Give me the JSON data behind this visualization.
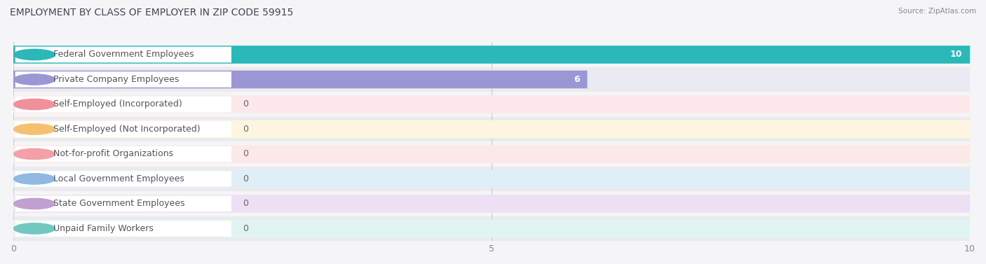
{
  "title": "EMPLOYMENT BY CLASS OF EMPLOYER IN ZIP CODE 59915",
  "source": "Source: ZipAtlas.com",
  "categories": [
    "Federal Government Employees",
    "Private Company Employees",
    "Self-Employed (Incorporated)",
    "Self-Employed (Not Incorporated)",
    "Not-for-profit Organizations",
    "Local Government Employees",
    "State Government Employees",
    "Unpaid Family Workers"
  ],
  "values": [
    10,
    6,
    0,
    0,
    0,
    0,
    0,
    0
  ],
  "bar_colors": [
    "#2ab8b8",
    "#9b97d4",
    "#f0909a",
    "#f5c070",
    "#f4a0a8",
    "#90b8e0",
    "#c0a0d0",
    "#70c8c0"
  ],
  "bar_bg_colors": [
    "#e0f5f5",
    "#eaeaf5",
    "#fce8ea",
    "#fef5e0",
    "#fde8e8",
    "#e0eef8",
    "#ede0f4",
    "#e0f5f2"
  ],
  "label_bg_color": "#ffffff",
  "xlim": [
    0,
    10
  ],
  "xticks": [
    0,
    5,
    10
  ],
  "bar_height": 0.72,
  "row_colors": [
    "#f5f5f7",
    "#ebebee"
  ],
  "title_fontsize": 10,
  "label_fontsize": 9,
  "value_fontsize": 9
}
